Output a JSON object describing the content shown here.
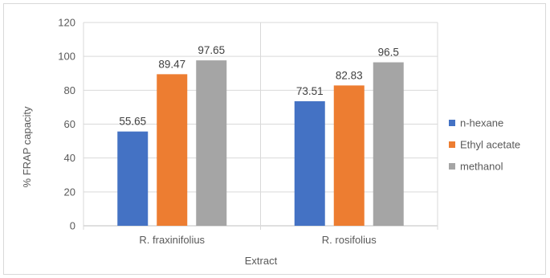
{
  "chart_data": {
    "type": "bar",
    "title": "",
    "xlabel": "Extract",
    "ylabel": "% FRAP capacity",
    "ylim": [
      0,
      120
    ],
    "yticks": [
      0,
      20,
      40,
      60,
      80,
      100,
      120
    ],
    "grid": true,
    "legend_position": "right",
    "categories": [
      "R. fraxinifolius",
      "R. rosifolius"
    ],
    "series": [
      {
        "name": "n-hexane",
        "color": "#4472c4",
        "values": [
          55.65,
          73.51
        ],
        "labels": [
          "55.65",
          "73.51"
        ]
      },
      {
        "name": "Ethyl acetate",
        "color": "#ed7d31",
        "values": [
          89.47,
          82.83
        ],
        "labels": [
          "89.47",
          "82.83"
        ]
      },
      {
        "name": "methanol",
        "color": "#a5a5a5",
        "values": [
          97.65,
          96.5
        ],
        "labels": [
          "97.65",
          "96.5"
        ]
      }
    ]
  }
}
